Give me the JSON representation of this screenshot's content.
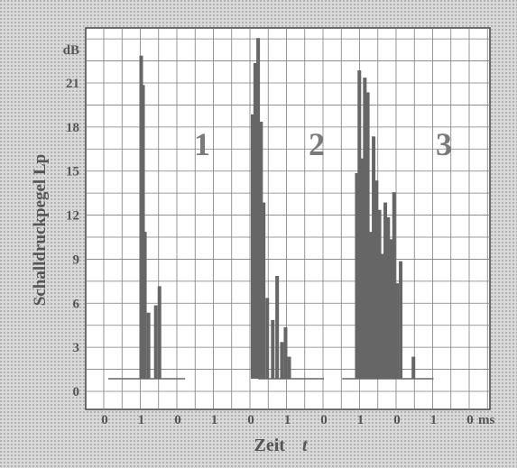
{
  "chart_data": {
    "type": "bar",
    "ylabel": "Schalldruckpegel Lp",
    "xlabel_parts": [
      "Zeit",
      "t"
    ],
    "y_unit": "dB",
    "x_unit": "ms",
    "ylim": [
      -1,
      24
    ],
    "yticks": [
      0,
      3,
      6,
      9,
      12,
      15,
      18,
      21
    ],
    "x_ticks": [
      "0",
      "1",
      "0",
      "1",
      "0",
      "1",
      "0",
      "1",
      "0",
      "1",
      "0"
    ],
    "grid": true,
    "groups": [
      {
        "label": "1",
        "baseline_start": 0.1,
        "baseline_end": 2.2,
        "bursts": [
          {
            "t": 1.0,
            "v": 22.0
          },
          {
            "t": 1.05,
            "v": 20.0
          },
          {
            "t": 1.1,
            "v": 10.0
          },
          {
            "t": 1.2,
            "v": 4.5
          },
          {
            "t": 1.4,
            "v": 5.0
          },
          {
            "t": 1.5,
            "v": 6.3
          }
        ]
      },
      {
        "label": "2",
        "baseline_start": 4.2,
        "baseline_end": 6.0,
        "bursts": [
          {
            "t": 4.05,
            "v": 18.0
          },
          {
            "t": 4.12,
            "v": 21.5
          },
          {
            "t": 4.2,
            "v": 23.2
          },
          {
            "t": 4.28,
            "v": 17.5
          },
          {
            "t": 4.35,
            "v": 12.0
          },
          {
            "t": 4.45,
            "v": 5.5
          },
          {
            "t": 4.6,
            "v": 4.0
          },
          {
            "t": 4.72,
            "v": 7.0
          },
          {
            "t": 4.85,
            "v": 2.5
          },
          {
            "t": 4.95,
            "v": 3.5
          },
          {
            "t": 5.05,
            "v": 1.5
          }
        ]
      },
      {
        "label": "3",
        "baseline_start": 6.5,
        "baseline_end": 9.0,
        "bursts": [
          {
            "t": 6.9,
            "v": 14.0
          },
          {
            "t": 6.97,
            "v": 21.0
          },
          {
            "t": 7.04,
            "v": 15.0
          },
          {
            "t": 7.12,
            "v": 20.5
          },
          {
            "t": 7.2,
            "v": 19.5
          },
          {
            "t": 7.28,
            "v": 10.0
          },
          {
            "t": 7.36,
            "v": 16.5
          },
          {
            "t": 7.44,
            "v": 13.5
          },
          {
            "t": 7.52,
            "v": 11.5
          },
          {
            "t": 7.6,
            "v": 8.5
          },
          {
            "t": 7.68,
            "v": 12.0
          },
          {
            "t": 7.76,
            "v": 11.0
          },
          {
            "t": 7.84,
            "v": 9.5
          },
          {
            "t": 7.92,
            "v": 12.7
          },
          {
            "t": 8.0,
            "v": 6.5
          },
          {
            "t": 8.1,
            "v": 8.0
          },
          {
            "t": 8.45,
            "v": 1.5
          }
        ]
      }
    ]
  },
  "colors": {
    "background_pattern": "#c9c9c9",
    "grid": "#7d7d7d",
    "ink": "#555555",
    "bars": "#666666",
    "group_labels": "#7a7a7a"
  }
}
